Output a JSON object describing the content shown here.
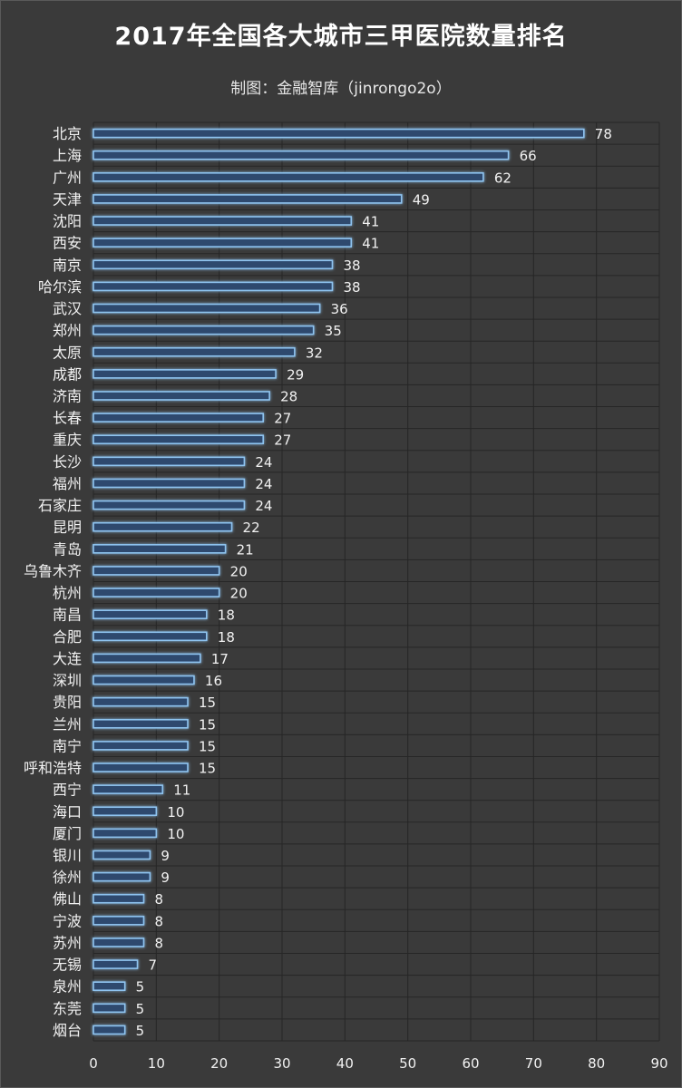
{
  "title": "2017年全国各大城市三甲医院数量排名",
  "subtitle": "制图：金融智库（jinrongo2o）",
  "colors": {
    "background": "#3a3a3a",
    "bar_fill": "#2d4a6e",
    "bar_stroke": "#8fc4f0",
    "grid": "#262626",
    "text": "#f2f2f2"
  },
  "chart_data": {
    "type": "bar",
    "orientation": "horizontal",
    "title": "2017年全国各大城市三甲医院数量排名",
    "subtitle": "制图：金融智库（jinrongo2o）",
    "categories": [
      "北京",
      "上海",
      "广州",
      "天津",
      "沈阳",
      "西安",
      "南京",
      "哈尔滨",
      "武汉",
      "郑州",
      "太原",
      "成都",
      "济南",
      "长春",
      "重庆",
      "长沙",
      "福州",
      "石家庄",
      "昆明",
      "青岛",
      "乌鲁木齐",
      "杭州",
      "南昌",
      "合肥",
      "大连",
      "深圳",
      "贵阳",
      "兰州",
      "南宁",
      "呼和浩特",
      "西宁",
      "海口",
      "厦门",
      "银川",
      "徐州",
      "佛山",
      "宁波",
      "苏州",
      "无锡",
      "泉州",
      "东莞",
      "烟台"
    ],
    "values": [
      78,
      66,
      62,
      49,
      41,
      41,
      38,
      38,
      36,
      35,
      32,
      29,
      28,
      27,
      27,
      24,
      24,
      24,
      22,
      21,
      20,
      20,
      18,
      18,
      17,
      16,
      15,
      15,
      15,
      15,
      11,
      10,
      10,
      9,
      9,
      8,
      8,
      8,
      7,
      5,
      5,
      5
    ],
    "xlim": [
      0,
      90
    ],
    "xticks": [
      0,
      10,
      20,
      30,
      40,
      50,
      60,
      70,
      80,
      90
    ],
    "grid": true,
    "data_labels": true,
    "legend": "none"
  }
}
